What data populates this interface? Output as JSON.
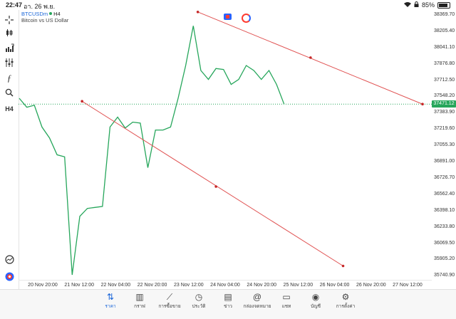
{
  "status_bar": {
    "time": "22:47",
    "date": "อา. 26 พ.ย.",
    "battery_text": "85%",
    "battery_level": 0.85,
    "icons": [
      "wifi-icon",
      "lock-icon",
      "battery-icon"
    ]
  },
  "legend": {
    "symbol": "BTCUSDm",
    "timeframe": "H4",
    "description": "Bitcoin vs US Dollar"
  },
  "toolbar": {
    "items": [
      "crosshair-icon",
      "candle-icon",
      "indicator-icon",
      "settings-sliders-icon",
      "function-icon",
      "search-icon"
    ],
    "timeframe_label": "H4"
  },
  "price_scale": {
    "ticks": [
      "38369.70",
      "38205.40",
      "38041.10",
      "37876.80",
      "37712.50",
      "37548.20",
      "37383.90",
      "37219.60",
      "37055.30",
      "36891.00",
      "36726.70",
      "36562.40",
      "36398.10",
      "36233.80",
      "36069.50",
      "35905.20",
      "35740.90"
    ],
    "current_price": "37471.12"
  },
  "time_scale": {
    "labels": [
      "20 Nov 20:00",
      "21 Nov 12:00",
      "22 Nov 04:00",
      "22 Nov 20:00",
      "23 Nov 12:00",
      "24 Nov 04:00",
      "24 Nov 20:00",
      "25 Nov 12:00",
      "26 Nov 04:00",
      "26 Nov 20:00",
      "27 Nov 12:00"
    ]
  },
  "colors": {
    "line": "#26a65b",
    "trendline": "#e05252",
    "accent": "#1a66d9",
    "price_badge": "#26a65b"
  },
  "chart_data": {
    "type": "line",
    "series": [
      {
        "values": [
          37530,
          37440,
          37460,
          37240,
          37130,
          36960,
          36940,
          35750,
          36340,
          36420,
          36430,
          36440,
          37240,
          37340,
          37230,
          37290,
          37280,
          36830,
          37210,
          37210,
          37240,
          37530,
          37860,
          38260,
          37810,
          37720,
          37830,
          37820,
          37670,
          37720,
          37860,
          37810,
          37720,
          37810,
          37670,
          37471
        ]
      }
    ],
    "current_price": 37471.12,
    "ylim": [
      35700,
      38420
    ],
    "trendlines": [
      {
        "from": {
          "bar": 23.6,
          "price": 38400
        },
        "to": {
          "bar": 53.3,
          "price": 37471
        },
        "midpoint": {
          "bar": 38.5,
          "price": 37940
        }
      },
      {
        "from": {
          "bar": 8.3,
          "price": 37500
        },
        "to": {
          "bar": 42.8,
          "price": 35840
        },
        "midpoint": {
          "bar": 26.0,
          "price": 36640
        }
      }
    ]
  },
  "bottom_nav": {
    "items": [
      {
        "label": "ราคา",
        "icon": "quotes-icon",
        "active": true
      },
      {
        "label": "กราฟ",
        "icon": "chart-icon",
        "active": false
      },
      {
        "label": "การซื้อขาย",
        "icon": "trade-icon",
        "active": false
      },
      {
        "label": "ประวัติ",
        "icon": "history-icon",
        "active": false
      },
      {
        "label": "ข่าว",
        "icon": "news-icon",
        "active": false
      },
      {
        "label": "กล่องจดหมาย",
        "icon": "mailbox-icon",
        "active": false
      },
      {
        "label": "แชท",
        "icon": "chat-icon",
        "active": false
      },
      {
        "label": "บัญชี",
        "icon": "account-icon",
        "active": false
      },
      {
        "label": "การตั้งค่า",
        "icon": "settings-icon",
        "active": false
      }
    ]
  }
}
